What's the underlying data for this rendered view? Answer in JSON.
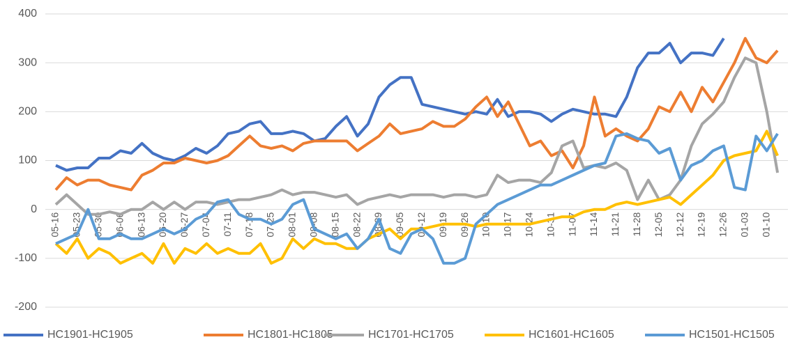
{
  "chart_data": {
    "type": "line",
    "categories": [
      "05-16",
      null,
      "05-23",
      null,
      "05-30",
      null,
      "06-06",
      null,
      "06-13",
      null,
      "06-20",
      null,
      "06-27",
      null,
      "07-04",
      null,
      "07-11",
      null,
      "07-18",
      null,
      "07-25",
      null,
      "08-01",
      null,
      "08-08",
      null,
      "08-15",
      null,
      "08-22",
      null,
      "08-29",
      null,
      "09-05",
      null,
      "09-12",
      null,
      "09-19",
      null,
      "09-26",
      null,
      "10-10",
      null,
      "10-17",
      null,
      "10-24",
      null,
      "10-31",
      null,
      "11-07",
      null,
      "11-14",
      null,
      "11-21",
      null,
      "11-28",
      null,
      "12-05",
      null,
      "12-12",
      null,
      "12-19",
      null,
      "12-26",
      null,
      "01-03",
      null,
      "01-10",
      null
    ],
    "series": [
      {
        "name": "HC1901-HC1905",
        "color": "#4472c4",
        "values": [
          90,
          80,
          85,
          85,
          105,
          105,
          120,
          115,
          135,
          115,
          105,
          100,
          110,
          125,
          115,
          130,
          155,
          160,
          175,
          180,
          155,
          155,
          160,
          155,
          140,
          145,
          170,
          190,
          150,
          175,
          230,
          255,
          270,
          270,
          215,
          210,
          205,
          200,
          195,
          200,
          195,
          225,
          190,
          200,
          200,
          195,
          180,
          195,
          205,
          200,
          195,
          195,
          190,
          230,
          290,
          320,
          320,
          340,
          300,
          320,
          320,
          315,
          350,
          null,
          null,
          null,
          null,
          null
        ]
      },
      {
        "name": "HC1801-HC1805",
        "color": "#ed7d31",
        "values": [
          40,
          65,
          50,
          60,
          60,
          50,
          45,
          40,
          70,
          80,
          95,
          95,
          105,
          100,
          95,
          100,
          110,
          130,
          150,
          130,
          125,
          130,
          120,
          135,
          140,
          140,
          140,
          140,
          120,
          135,
          150,
          175,
          155,
          160,
          165,
          180,
          170,
          170,
          185,
          210,
          230,
          190,
          220,
          175,
          130,
          140,
          110,
          120,
          85,
          130,
          230,
          150,
          165,
          150,
          140,
          165,
          210,
          200,
          240,
          200,
          250,
          220,
          260,
          300,
          350,
          310,
          300,
          325
        ]
      },
      {
        "name": "HC1701-HC1705",
        "color": "#a5a5a5",
        "values": [
          10,
          30,
          10,
          -10,
          -10,
          -5,
          -10,
          0,
          0,
          15,
          0,
          15,
          0,
          15,
          15,
          10,
          15,
          20,
          20,
          25,
          30,
          40,
          30,
          35,
          35,
          30,
          25,
          30,
          10,
          20,
          25,
          30,
          25,
          30,
          30,
          30,
          25,
          30,
          30,
          25,
          30,
          70,
          55,
          60,
          60,
          55,
          75,
          130,
          140,
          85,
          90,
          85,
          95,
          80,
          20,
          60,
          20,
          30,
          60,
          130,
          175,
          195,
          220,
          270,
          310,
          300,
          200,
          75
        ]
      },
      {
        "name": "HC1601-HC1605",
        "color": "#ffc000",
        "values": [
          -70,
          -90,
          -60,
          -100,
          -80,
          -90,
          -110,
          -100,
          -90,
          -110,
          -70,
          -110,
          -80,
          -90,
          -70,
          -90,
          -80,
          -90,
          -90,
          -70,
          -110,
          -100,
          -60,
          -80,
          -60,
          -70,
          -70,
          -80,
          -80,
          -60,
          -50,
          -40,
          -60,
          -40,
          -40,
          -35,
          -30,
          -30,
          -30,
          -35,
          -30,
          -30,
          -30,
          -30,
          -30,
          -25,
          -20,
          -15,
          -15,
          -5,
          0,
          0,
          10,
          15,
          10,
          15,
          20,
          25,
          10,
          30,
          50,
          70,
          100,
          110,
          115,
          120,
          160,
          110
        ]
      },
      {
        "name": "HC1501-HC1505",
        "color": "#5b9bd5",
        "values": [
          -70,
          -60,
          -50,
          0,
          -60,
          -60,
          -50,
          -60,
          -60,
          -50,
          -40,
          -50,
          -40,
          -20,
          -10,
          15,
          20,
          -10,
          -20,
          -20,
          -30,
          -20,
          10,
          20,
          -40,
          -50,
          -60,
          -50,
          -80,
          -60,
          -20,
          -80,
          -90,
          -50,
          -40,
          -60,
          -110,
          -110,
          -100,
          -30,
          -10,
          10,
          20,
          30,
          40,
          50,
          50,
          60,
          70,
          80,
          90,
          95,
          150,
          155,
          145,
          140,
          115,
          125,
          60,
          90,
          100,
          120,
          130,
          45,
          40,
          150,
          120,
          155
        ]
      }
    ],
    "ylim": [
      -200,
      400
    ],
    "yticks": [
      -200,
      -100,
      0,
      100,
      200,
      300,
      400
    ],
    "grid": true,
    "legend": "bottom"
  }
}
